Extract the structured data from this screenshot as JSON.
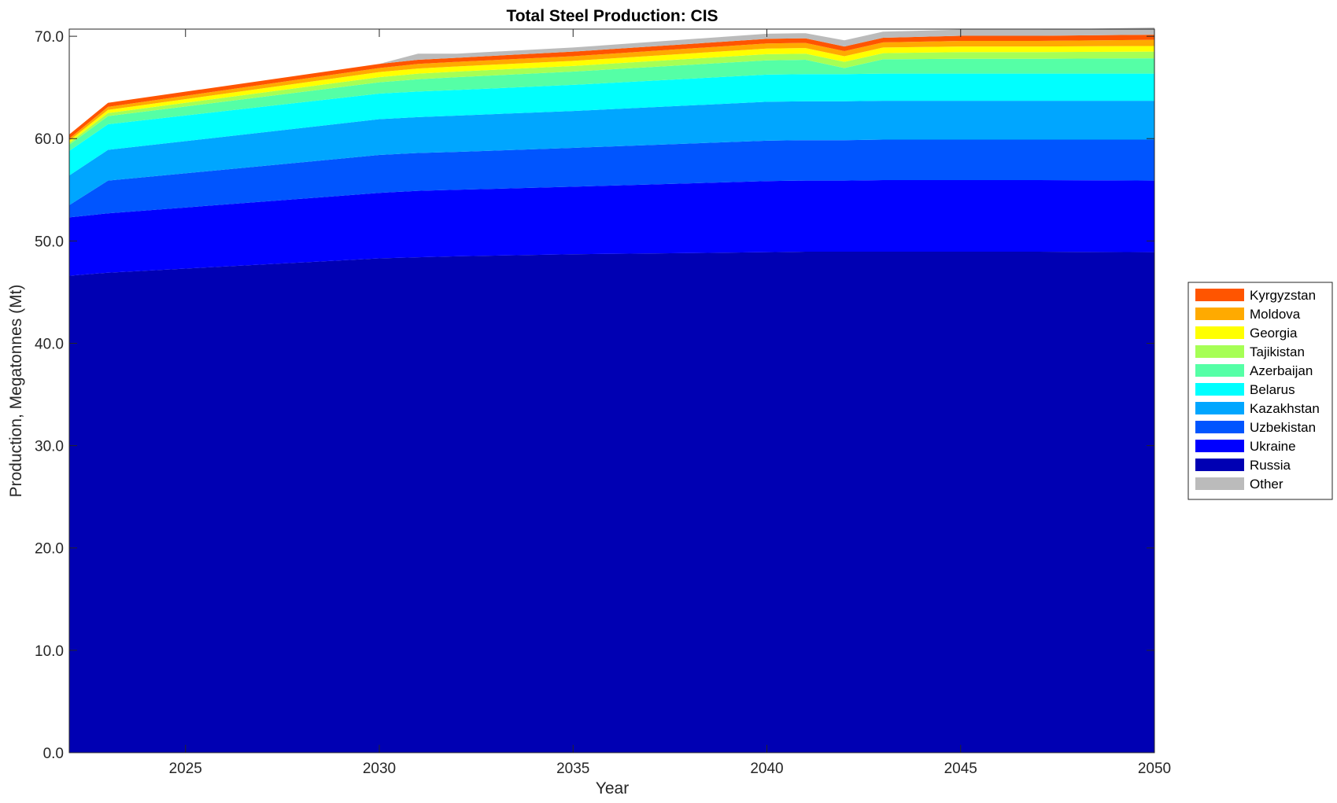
{
  "chart_data": {
    "type": "area",
    "title": "Total Steel Production: CIS",
    "xlabel": "Year",
    "ylabel": "Production, Megatonnes (Mt)",
    "xlim": [
      2022,
      2050
    ],
    "ylim": [
      0,
      70.7
    ],
    "xticks": [
      "2025",
      "2030",
      "2035",
      "2040",
      "2045",
      "2050"
    ],
    "yticks": [
      "0.0",
      "10.0",
      "20.0",
      "30.0",
      "40.0",
      "50.0",
      "60.0",
      "70.0"
    ],
    "grid": false,
    "legend_position": "right",
    "stack_order": [
      "Russia",
      "Ukraine",
      "Uzbekistan",
      "Kazakhstan",
      "Belarus",
      "Azerbaijan",
      "Tajikistan",
      "Georgia",
      "Moldova",
      "Kyrgyzstan",
      "Other"
    ],
    "legend_order": [
      "Kyrgyzstan",
      "Moldova",
      "Georgia",
      "Tajikistan",
      "Azerbaijan",
      "Belarus",
      "Kazakhstan",
      "Uzbekistan",
      "Ukraine",
      "Russia",
      "Other"
    ],
    "x": [
      2022,
      2023,
      2030,
      2031,
      2032,
      2035,
      2040,
      2041,
      2042,
      2043,
      2045,
      2047,
      2050
    ],
    "series": [
      {
        "name": "Russia",
        "color": "#0000B3",
        "values": [
          46.6,
          46.9,
          48.3,
          48.4,
          48.5,
          48.7,
          48.9,
          48.95,
          48.95,
          48.95,
          48.95,
          48.95,
          48.9
        ]
      },
      {
        "name": "Ukraine",
        "color": "#0000FF",
        "values": [
          5.7,
          5.8,
          6.4,
          6.5,
          6.5,
          6.6,
          6.95,
          6.95,
          6.95,
          7.0,
          7.0,
          7.0,
          7.0
        ]
      },
      {
        "name": "Uzbekistan",
        "color": "#0055FF",
        "values": [
          1.2,
          3.2,
          3.7,
          3.7,
          3.7,
          3.8,
          3.95,
          3.95,
          3.95,
          3.95,
          3.95,
          3.95,
          4.0
        ]
      },
      {
        "name": "Kazakhstan",
        "color": "#00A6FF",
        "values": [
          2.9,
          3.0,
          3.5,
          3.5,
          3.55,
          3.6,
          3.8,
          3.8,
          3.8,
          3.8,
          3.8,
          3.8,
          3.8
        ]
      },
      {
        "name": "Belarus",
        "color": "#00FFFF",
        "values": [
          2.4,
          2.5,
          2.5,
          2.5,
          2.5,
          2.55,
          2.65,
          2.65,
          2.65,
          2.65,
          2.65,
          2.65,
          2.65
        ]
      },
      {
        "name": "Azerbaijan",
        "color": "#55FFA6",
        "values": [
          0.6,
          0.8,
          1.1,
          1.2,
          1.25,
          1.3,
          1.4,
          1.4,
          0.6,
          1.4,
          1.45,
          1.45,
          1.5
        ]
      },
      {
        "name": "Tajikistan",
        "color": "#A6FF55",
        "values": [
          0.2,
          0.3,
          0.5,
          0.55,
          0.55,
          0.55,
          0.6,
          0.6,
          0.6,
          0.6,
          0.65,
          0.65,
          0.65
        ]
      },
      {
        "name": "Georgia",
        "color": "#FFFF00",
        "values": [
          0.2,
          0.3,
          0.5,
          0.5,
          0.5,
          0.5,
          0.55,
          0.55,
          0.55,
          0.55,
          0.55,
          0.55,
          0.55
        ]
      },
      {
        "name": "Moldova",
        "color": "#FFAA00",
        "values": [
          0.2,
          0.3,
          0.4,
          0.45,
          0.45,
          0.45,
          0.5,
          0.5,
          0.5,
          0.5,
          0.55,
          0.55,
          0.6
        ]
      },
      {
        "name": "Kyrgyzstan",
        "color": "#FF5500",
        "values": [
          0.4,
          0.4,
          0.4,
          0.4,
          0.4,
          0.45,
          0.45,
          0.45,
          0.45,
          0.45,
          0.5,
          0.5,
          0.5
        ]
      },
      {
        "name": "Other",
        "color": "#BBBBBB",
        "values": [
          0.0,
          0.0,
          0.0,
          0.6,
          0.4,
          0.4,
          0.5,
          0.5,
          0.6,
          0.6,
          0.6,
          0.6,
          0.7
        ]
      }
    ]
  }
}
